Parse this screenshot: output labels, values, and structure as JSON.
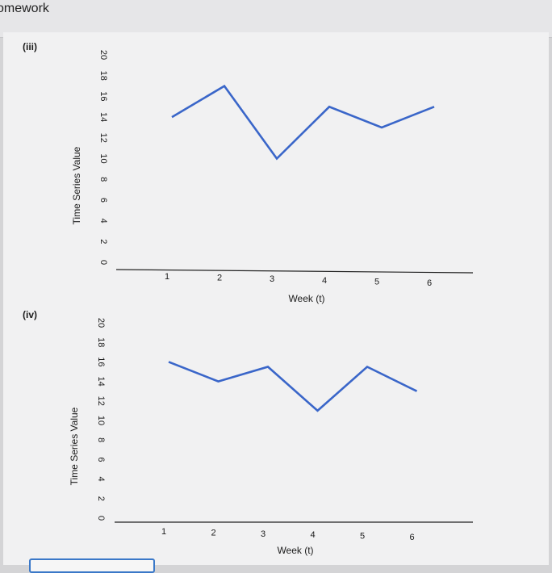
{
  "header": {
    "title": "omework"
  },
  "chart_data": [
    {
      "type": "line",
      "panel_label": "(iii)",
      "xlabel": "Week (t)",
      "ylabel": "Time Series Value",
      "x": [
        1,
        2,
        3,
        4,
        5,
        6
      ],
      "xticks": [
        "1",
        "2",
        "3",
        "4",
        "5",
        "6"
      ],
      "yticks": [
        "0",
        "2",
        "4",
        "6",
        "8",
        "10",
        "12",
        "14",
        "16",
        "18",
        "20"
      ],
      "ylim": [
        0,
        20
      ],
      "series": [
        {
          "values": [
            14,
            17,
            10,
            15,
            13,
            15
          ],
          "color": "#3a66c9"
        }
      ]
    },
    {
      "type": "line",
      "panel_label": "(iv)",
      "xlabel": "Week (t)",
      "ylabel": "Time Series Value",
      "x": [
        1,
        2,
        3,
        4,
        5,
        6
      ],
      "xticks": [
        "1",
        "2",
        "3",
        "4",
        "5",
        "6"
      ],
      "yticks": [
        "0",
        "2",
        "4",
        "6",
        "8",
        "10",
        "12",
        "14",
        "16",
        "18",
        "20"
      ],
      "ylim": [
        0,
        20
      ],
      "series": [
        {
          "values": [
            16,
            14,
            15.5,
            11,
            15.5,
            13
          ],
          "color": "#3a66c9"
        }
      ]
    }
  ]
}
